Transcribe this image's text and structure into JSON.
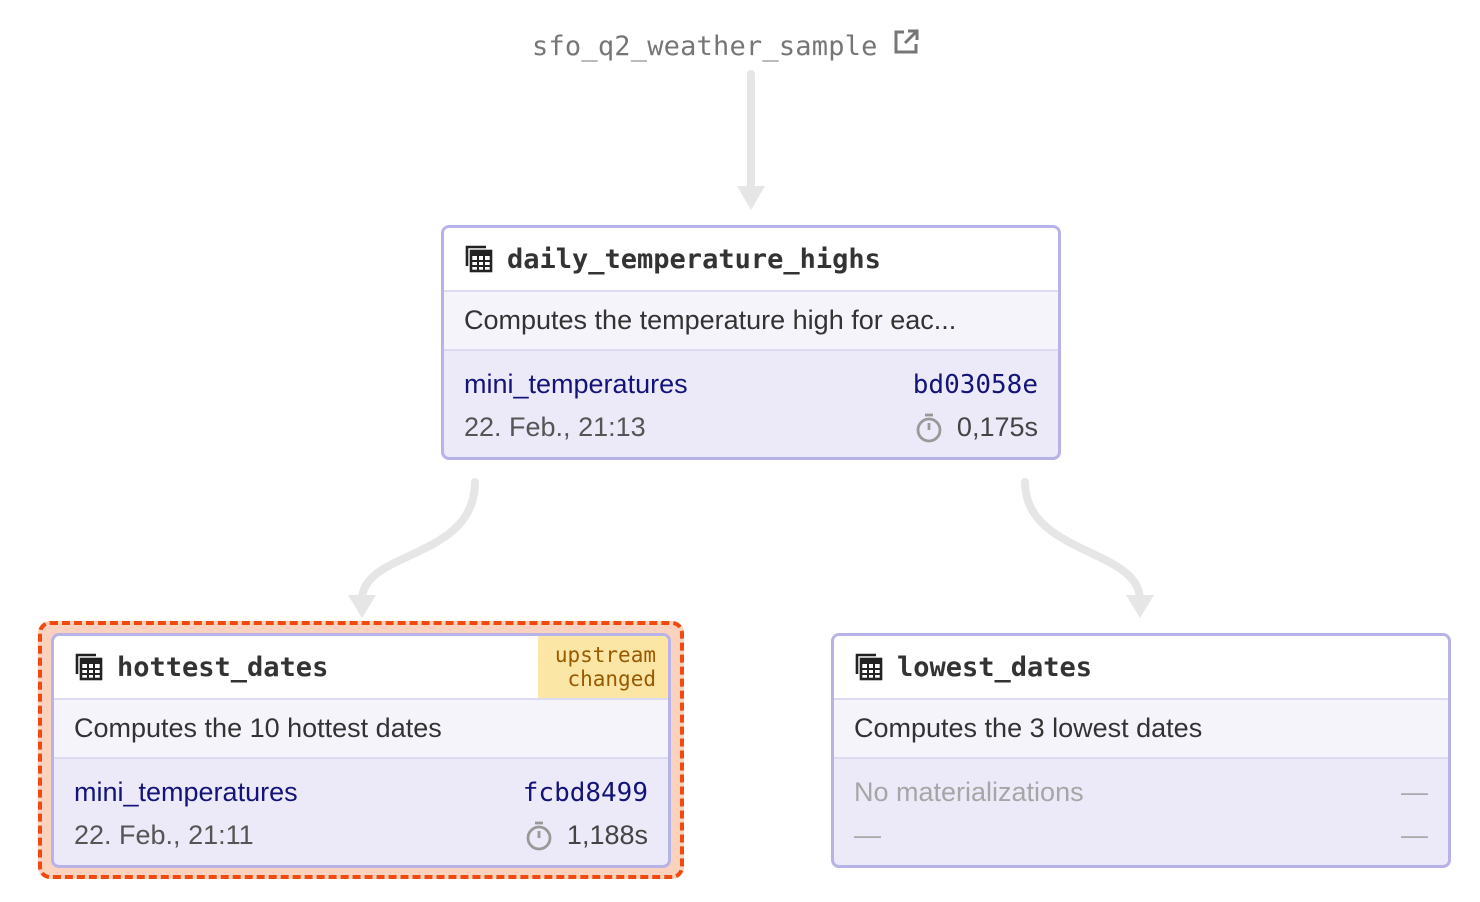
{
  "source": {
    "name": "sfo_q2_weather_sample",
    "icon": "external-link-icon"
  },
  "nodes": {
    "daily_temperature_highs": {
      "name": "daily_temperature_highs",
      "description": "Computes the temperature high for eac...",
      "partition": "mini_temperatures",
      "hash": "bd03058e",
      "timestamp": "22. Feb., 21:13",
      "duration": "0,175s"
    },
    "hottest_dates": {
      "name": "hottest_dates",
      "description": "Computes the 10 hottest dates",
      "badge_line1": "upstream",
      "badge_line2": "changed",
      "partition": "mini_temperatures",
      "hash": "fcbd8499",
      "timestamp": "22. Feb., 21:11",
      "duration": "1,188s",
      "selected": true
    },
    "lowest_dates": {
      "name": "lowest_dates",
      "description": "Computes the 3 lowest dates",
      "status": "No materializations",
      "placeholder": "—"
    }
  },
  "colors": {
    "node_border": "#b7b3e8",
    "node_body": "#eceaf8",
    "link_text": "#141478",
    "selection": "#f04a10",
    "selection_fill": "#fbd2bd",
    "badge_bg": "#fbe6a6",
    "badge_text": "#9a5a00",
    "edge": "#e6e6e6"
  }
}
